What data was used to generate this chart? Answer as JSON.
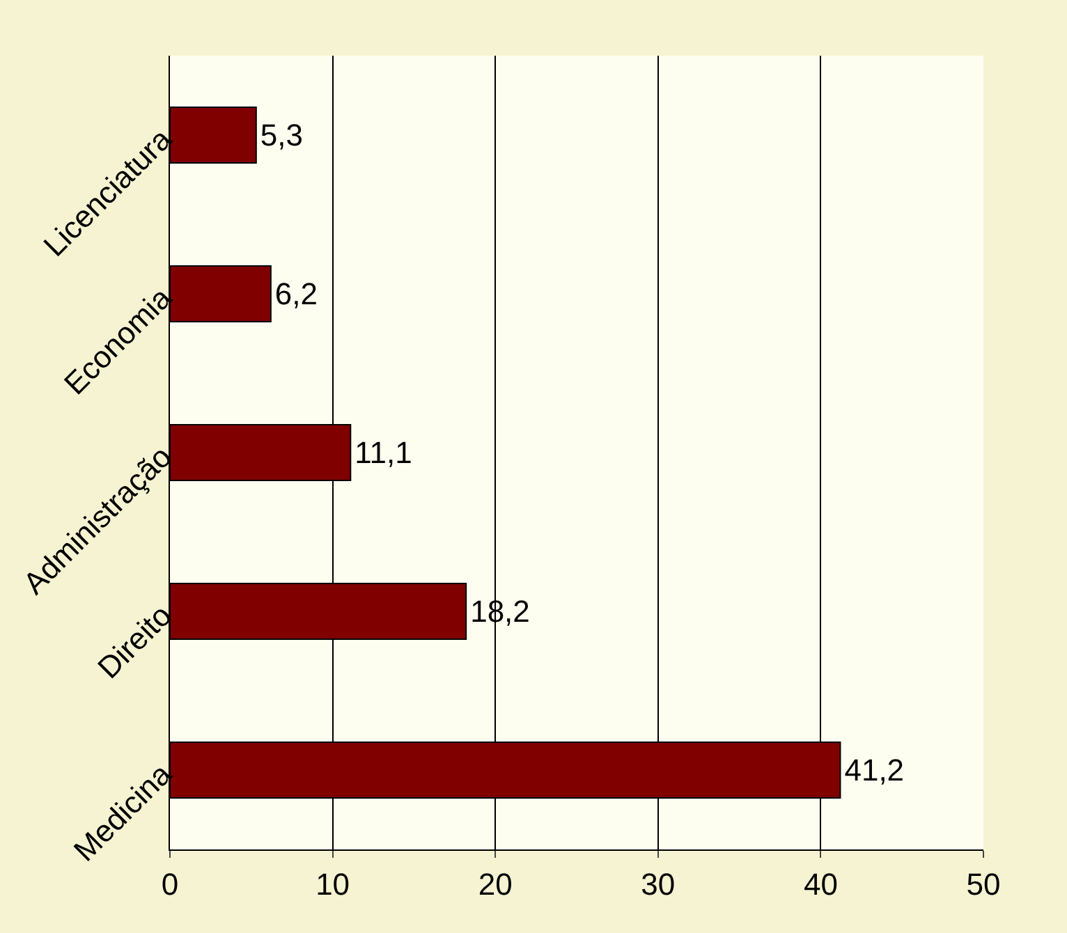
{
  "chart_data": {
    "type": "bar",
    "orientation": "horizontal",
    "categories": [
      "Licenciatura",
      "Economia",
      "Administração",
      "Direito",
      "Medicina"
    ],
    "series": [
      {
        "color": "#800000",
        "values": [
          5.3,
          6.2,
          11.1,
          18.2,
          41.2
        ],
        "value_labels": [
          "5,3",
          "6,2",
          "11,1",
          "18,2",
          "41,2"
        ]
      }
    ],
    "xlim": [
      0,
      50
    ],
    "xticks": [
      0,
      10,
      20,
      30,
      40,
      50
    ],
    "grid": "x"
  }
}
